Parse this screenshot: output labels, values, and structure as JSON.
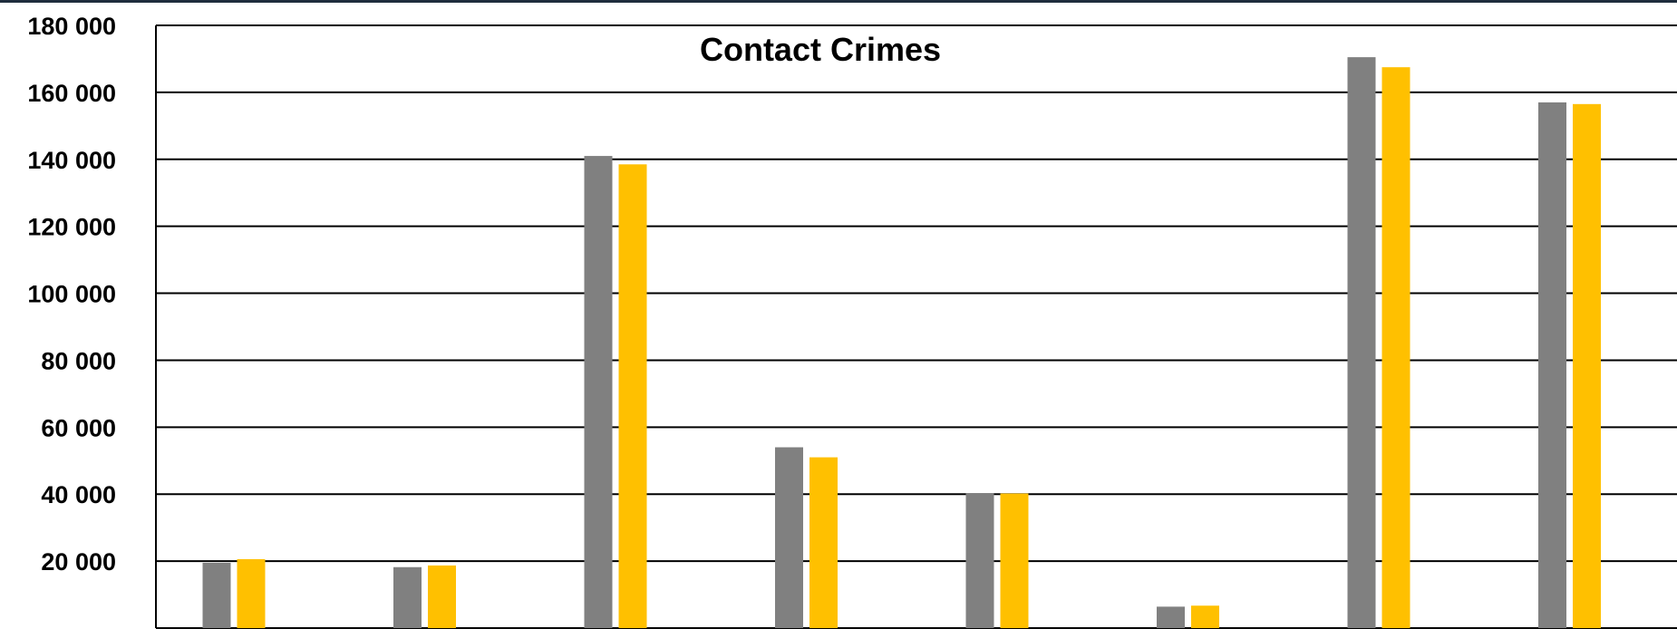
{
  "chart_data": {
    "type": "bar",
    "title": "Contact Crimes",
    "xlabel": "",
    "ylabel": "",
    "ylim": [
      0,
      180000
    ],
    "y_ticks": [
      "-",
      "20 000",
      "40 000",
      "60 000",
      "80 000",
      "100 000",
      "120 000",
      "140 000",
      "160 000",
      "180 000"
    ],
    "y_tick_values": [
      0,
      20000,
      40000,
      60000,
      80000,
      100000,
      120000,
      140000,
      160000,
      180000
    ],
    "grid": true,
    "categories": [
      "",
      "",
      "",
      "",
      "",
      "",
      "",
      ""
    ],
    "series": [
      {
        "values": [
          19500,
          18200,
          141000,
          54000,
          40300,
          6400,
          170500,
          157000
        ],
        "color": "#808080"
      },
      {
        "values": [
          20600,
          18700,
          138500,
          51000,
          40200,
          6700,
          167500,
          156500
        ],
        "color": "#FFC000"
      }
    ]
  }
}
